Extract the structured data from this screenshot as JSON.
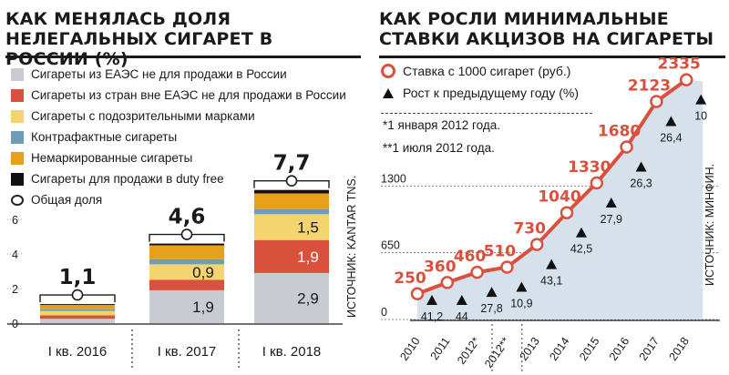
{
  "left_title": "КАК МЕНЯЛАСЬ ДОЛЯ НЕЛЕГАЛЬНЫХ СИГАРЕТ В РОССИИ (%)",
  "right_title": "КАК РОСЛИ МИНИМАЛЬНЫЕ СТАВКИ АКЦИЗОВ НА СИГАРЕТЫ",
  "left_source": "ИСТОЧНИК: KANTAR TNS.",
  "right_source": "ИСТОЧНИК: МИНФИН.",
  "colors": {
    "eaes": "#c8cbd1",
    "non_eaes": "#d9513d",
    "suspicious": "#f3d46f",
    "counterfeit": "#6f9db8",
    "unmarked": "#e8a01c",
    "dutyfree": "#111111",
    "line": "#d9513d",
    "area": "#d6e1ec"
  },
  "chart_data": [
    {
      "type": "bar",
      "stacked": true,
      "categories": [
        "I кв. 2016",
        "I кв. 2017",
        "I кв. 2018"
      ],
      "ylim": [
        0,
        8
      ],
      "yticks": [
        "0",
        "2",
        "4",
        "6"
      ],
      "legend": [
        "Сигареты из ЕАЭС не для продажи в России",
        "Сигареты из стран вне ЕАЭС не для продажи в России",
        "Сигареты с подозрительными марками",
        "Контрафактные сигареты",
        "Немаркированные сигареты",
        "Сигареты для продажи в duty free",
        "Общая доля"
      ],
      "series": [
        {
          "name": "Сигареты из ЕАЭС не для продажи в России",
          "color_key": "eaes",
          "values": [
            0.25,
            1.9,
            2.9
          ],
          "labels": [
            "",
            "1,9",
            "2,9"
          ]
        },
        {
          "name": "Сигареты из стран вне ЕАЭС не для продажи в России",
          "color_key": "non_eaes",
          "values": [
            0.2,
            0.6,
            1.9
          ],
          "labels": [
            "",
            "",
            "1,9"
          ]
        },
        {
          "name": "Сигареты с подозрительными марками",
          "color_key": "suspicious",
          "values": [
            0.25,
            0.9,
            1.5
          ],
          "labels": [
            "",
            "0,9",
            "1,5"
          ]
        },
        {
          "name": "Контрафактные сигареты",
          "color_key": "counterfeit",
          "values": [
            0.1,
            0.3,
            0.3
          ],
          "labels": [
            "",
            "",
            ""
          ]
        },
        {
          "name": "Немаркированные сигареты",
          "color_key": "unmarked",
          "values": [
            0.25,
            0.8,
            0.9
          ],
          "labels": [
            "",
            "",
            ""
          ]
        },
        {
          "name": "Сигареты для продажи в duty free",
          "color_key": "dutyfree",
          "values": [
            0.05,
            0.1,
            0.2
          ],
          "labels": [
            "",
            "",
            ""
          ]
        }
      ],
      "totals": [
        1.1,
        4.6,
        7.7
      ],
      "total_labels": [
        "1,1",
        "4,6",
        "7,7"
      ]
    },
    {
      "type": "line",
      "categories": [
        "2010",
        "2011",
        "2012*",
        "2012**",
        "2013",
        "2014",
        "2015",
        "2016",
        "2017",
        "2018"
      ],
      "yticks": [
        "0",
        "650",
        "1300"
      ],
      "legend": [
        "Ставка с 1000 сигарет (руб.)",
        "Рост к предыдущему году (%)"
      ],
      "series": [
        {
          "name": "Ставка с 1000 сигарет (руб.)",
          "values": [
            250,
            360,
            460,
            510,
            730,
            1040,
            1330,
            1680,
            2123,
            2335
          ]
        },
        {
          "name": "Рост к предыдущему году (%)",
          "values": [
            41.2,
            44,
            27.8,
            10.9,
            43.1,
            42.5,
            27.9,
            26.3,
            26.4,
            10
          ],
          "labels": [
            "41,2",
            "44",
            "27,8",
            "10,9",
            "43,1",
            "42,5",
            "27,9",
            "26,3",
            "26,4",
            "10"
          ]
        }
      ],
      "notes": [
        "*1 января 2012 года.",
        "**1 июля 2012 года."
      ]
    }
  ]
}
